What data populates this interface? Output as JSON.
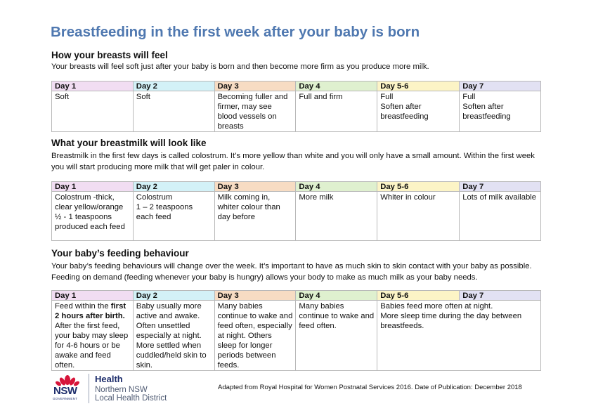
{
  "title": "Breastfeeding in the first week after your baby is born",
  "sections": [
    {
      "heading": "How your breasts will feel",
      "paragraph": "Your breasts will feel soft just after your baby is born and then become more firm as you produce more milk.",
      "days": [
        "Day 1",
        "Day 2",
        "Day 3",
        "Day 4",
        "Day 5-6",
        "Day 7"
      ],
      "cells": [
        "Soft",
        "Soft",
        "Becoming fuller and firmer, may see blood vessels on breasts",
        "Full and firm",
        "Full\nSoften after breastfeeding",
        "Full\nSoften after breastfeeding"
      ]
    },
    {
      "heading": "What your breastmilk will look like",
      "paragraph": "Breastmilk in the first few days is called colostrum. It’s more yellow than white and you will only have a small amount. Within the first week you will start producing more milk that will get paler in colour.",
      "days": [
        "Day 1",
        "Day 2",
        "Day 3",
        "Day 4",
        "Day 5-6",
        "Day 7"
      ],
      "cells": [
        "Colostrum -thick, clear yellow/orange\n ½ - 1 teaspoons produced each feed",
        "Colostrum\n1 – 2 teaspoons each feed",
        "Milk coming in, whiter colour than day before",
        "More milk",
        "Whiter in colour",
        "Lots of milk available"
      ]
    },
    {
      "heading": "Your baby’s feeding behaviour",
      "paragraph": "Your baby’s feeding behaviours will change over the week. It’s important to have as much skin to skin contact with your baby as possible. Feeding on demand (feeding whenever your baby is hungry) allows your body to make as much milk as your baby needs.",
      "days": [
        "Day 1",
        "Day 2",
        "Day 3",
        "Day 4",
        "Day 5-6",
        "Day 7"
      ],
      "cells": [
        "",
        "Baby usually more active and awake. Often unsettled especially at night. More settled when cuddled/held skin to skin.",
        "Many babies continue to wake and feed often, especially at night. Others sleep for longer periods between feeds.",
        "Many babies continue to wake and feed often.",
        "Babies feed more often at night.\nMore sleep time during the day between breastfeeds."
      ],
      "day1": {
        "before": "Feed within the ",
        "bold": "first 2 hours after birth.",
        "after": " After the first feed, your baby may sleep for 4-6 hours or be awake and feed often."
      }
    }
  ],
  "footer": {
    "logo_text": "NSW",
    "logo_subtext": "GOVERNMENT",
    "org_line1": "Health",
    "org_line2": "Northern NSW",
    "org_line3": "Local Health District",
    "credit": "Adapted from Royal Hospital for Women Postnatal Services 2016. Date of Publication: December 2018"
  },
  "colors": {
    "title": "#4f78b0",
    "day1": "#f1ddf2",
    "day2": "#d3f1f7",
    "day3": "#f7dcc3",
    "day4": "#dff0cf",
    "day5_6": "#fcf4c6",
    "day7": "#e2e1f3",
    "logo_red": "#d7153a",
    "logo_navy": "#1d2d6b"
  }
}
